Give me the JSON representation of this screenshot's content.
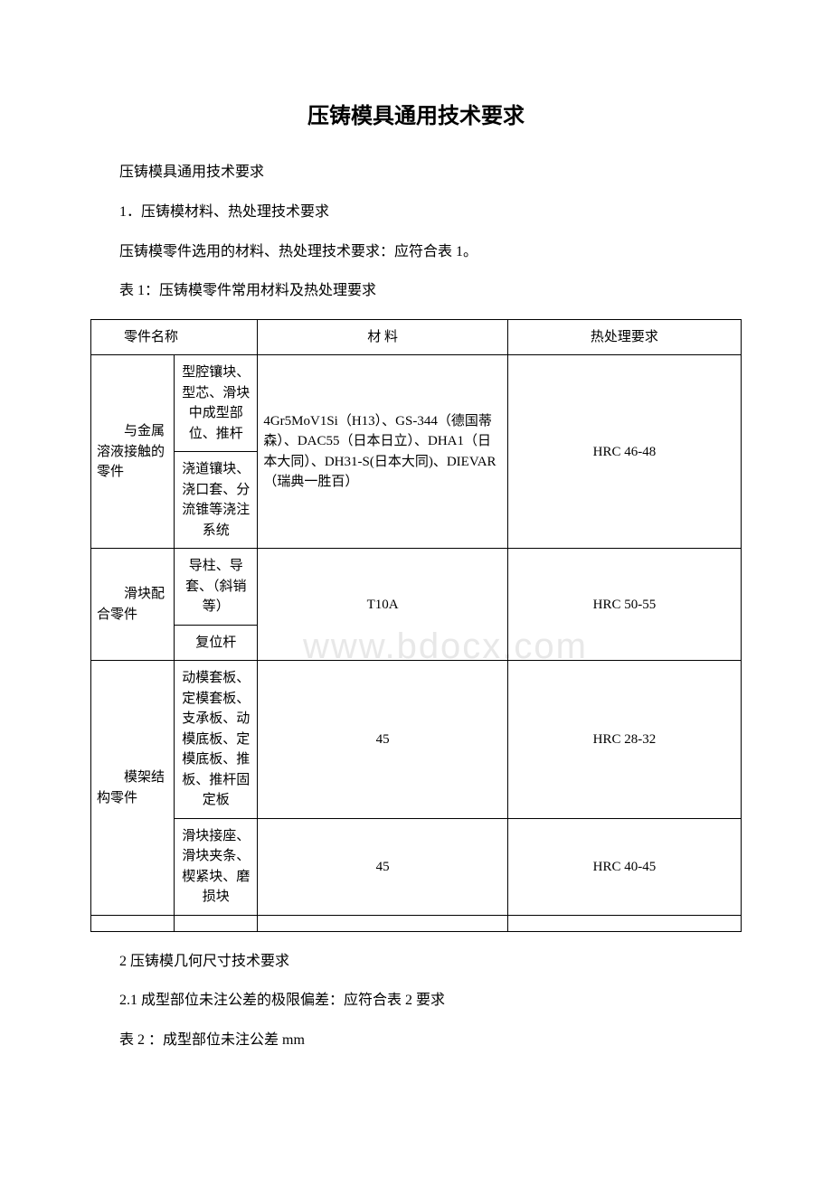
{
  "title": "压铸模具通用技术要求",
  "subtitle": "压铸模具通用技术要求",
  "section1_heading": "1．压铸模材料、热处理技术要求",
  "section1_para": "压铸模零件选用的材料、热处理技术要求：应符合表 1。",
  "table1_caption": "表 1：压铸模零件常用材料及热处理要求",
  "watermark": "www.bdocx.com",
  "table1": {
    "header": {
      "c1": "零件名称",
      "c2": "材 料",
      "c3": "热处理要求"
    },
    "r1": {
      "c1": "与金属溶液接触的零件",
      "c2a": "型腔镶块、型芯、滑块中成型部位、推杆",
      "c2b": "浇道镶块、浇口套、分流锥等浇注系统",
      "c3": "4Gr5MoV1Si（H13）、GS-344（德国蒂森）、DAC55（日本日立）、DHA1（日本大同）、DH31-S(日本大同)、DIEVAR（瑞典一胜百）",
      "c4": "HRC 46-48"
    },
    "r2": {
      "c1": "滑块配合零件",
      "c2a": "导柱、导套、（斜销等）",
      "c2b": "复位杆",
      "c3": "T10A",
      "c4": "HRC 50-55"
    },
    "r3": {
      "c1": "模架结构零件",
      "c2a": "动模套板、定模套板、支承板、动模底板、定模底板、推板、推杆固定板",
      "c2b": "滑块接座、滑块夹条、楔紧块、磨损块",
      "c3a": "45",
      "c3b": "45",
      "c4a": "HRC 28-32",
      "c4b": "HRC 40-45"
    }
  },
  "section2_heading": "2 压铸模几何尺寸技术要求",
  "section2_para1": "2.1 成型部位未注公差的极限偏差：应符合表 2 要求",
  "table2_caption": "表 2 ：成型部位未注公差 mm"
}
